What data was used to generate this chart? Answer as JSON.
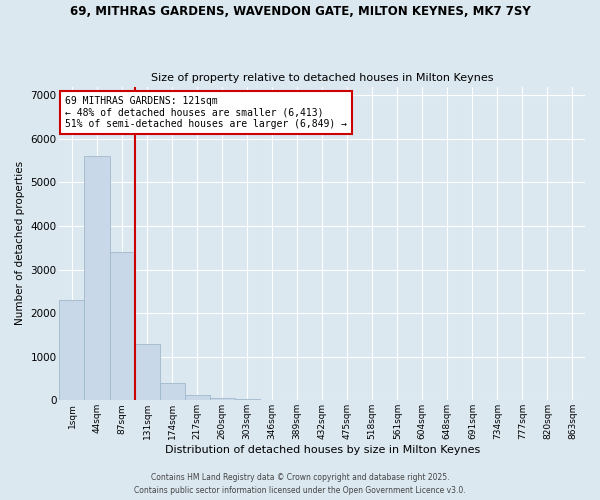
{
  "title1": "69, MITHRAS GARDENS, WAVENDON GATE, MILTON KEYNES, MK7 7SY",
  "title2": "Size of property relative to detached houses in Milton Keynes",
  "xlabel": "Distribution of detached houses by size in Milton Keynes",
  "ylabel": "Number of detached properties",
  "categories": [
    "1sqm",
    "44sqm",
    "87sqm",
    "131sqm",
    "174sqm",
    "217sqm",
    "260sqm",
    "303sqm",
    "346sqm",
    "389sqm",
    "432sqm",
    "475sqm",
    "518sqm",
    "561sqm",
    "604sqm",
    "648sqm",
    "691sqm",
    "734sqm",
    "777sqm",
    "820sqm",
    "863sqm"
  ],
  "values": [
    2300,
    5600,
    3400,
    1300,
    400,
    130,
    50,
    20,
    0,
    0,
    0,
    0,
    0,
    0,
    0,
    0,
    0,
    0,
    0,
    0,
    0
  ],
  "bar_color": "#c8d8e8",
  "bar_edge_color": "#a0b8cc",
  "vline_x_idx": 2,
  "vline_color": "#cc0000",
  "annotation_text": "69 MITHRAS GARDENS: 121sqm\n← 48% of detached houses are smaller (6,413)\n51% of semi-detached houses are larger (6,849) →",
  "annotation_box_color": "white",
  "annotation_box_edge": "#cc0000",
  "bg_color": "#dce8f0",
  "footer1": "Contains HM Land Registry data © Crown copyright and database right 2025.",
  "footer2": "Contains public sector information licensed under the Open Government Licence v3.0.",
  "ylim": [
    0,
    7200
  ],
  "yticks": [
    0,
    1000,
    2000,
    3000,
    4000,
    5000,
    6000,
    7000
  ]
}
